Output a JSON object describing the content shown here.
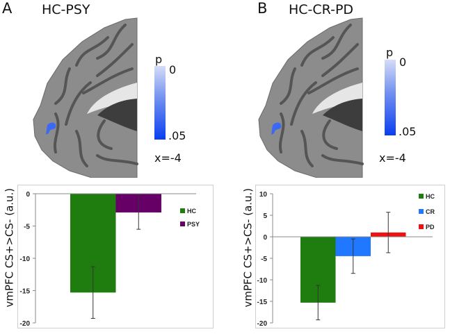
{
  "panels": [
    {
      "letter": "A",
      "title": "HC-PSY",
      "colorbar": {
        "label": "p",
        "max": "0",
        "min": ".05"
      },
      "slice": "x=-4"
    },
    {
      "letter": "B",
      "title": "HC-CR-PD",
      "colorbar": {
        "label": "p",
        "max": "0",
        "min": ".05"
      },
      "slice": "x=-4"
    }
  ],
  "chart_data": [
    {
      "type": "bar",
      "title": "",
      "ylabel": "vmPFC CS+>CS- (a.u.)",
      "xlabel": "",
      "ylim": [
        -20,
        0
      ],
      "yticks": [
        0,
        -5,
        -10,
        -15,
        -20
      ],
      "legend_position": "right",
      "series": [
        {
          "name": "HC",
          "value": -15.3,
          "error": 4.0,
          "color": "#1e7d0e"
        },
        {
          "name": "PSY",
          "value": -2.9,
          "error": 2.6,
          "color": "#660066"
        }
      ]
    },
    {
      "type": "bar",
      "title": "",
      "ylabel": "vmPFC CS+>CS- (a.u.)",
      "xlabel": "",
      "ylim": [
        -20,
        10
      ],
      "yticks": [
        10,
        5,
        0,
        -5,
        -10,
        -15,
        -20
      ],
      "legend_position": "top-right",
      "series": [
        {
          "name": "HC",
          "value": -15.3,
          "error": 4.0,
          "color": "#1e7d0e"
        },
        {
          "name": "CR",
          "value": -4.5,
          "error": 4.0,
          "color": "#1f78ff"
        },
        {
          "name": "PD",
          "value": 1.0,
          "error": 4.7,
          "color": "#ee1111"
        }
      ]
    }
  ]
}
